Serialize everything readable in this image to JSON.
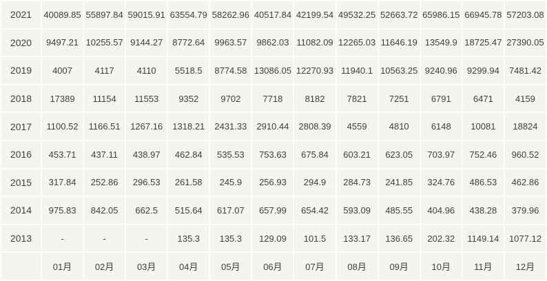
{
  "chart_data": {
    "type": "table",
    "columns": [
      "01月",
      "02月",
      "03月",
      "04月",
      "05月",
      "06月",
      "07月",
      "08月",
      "09月",
      "10月",
      "11月",
      "12月"
    ],
    "corner_label": "",
    "rows": [
      {
        "label": "2021",
        "values": [
          "40089.85",
          "55897.84",
          "59015.91",
          "63554.79",
          "58262.96",
          "40517.84",
          "42199.54",
          "49532.25",
          "52663.72",
          "65986.15",
          "66945.78",
          "57203.08"
        ]
      },
      {
        "label": "2020",
        "values": [
          "9497.21",
          "10255.57",
          "9144.27",
          "8772.64",
          "9963.57",
          "9862.03",
          "11082.09",
          "12265.03",
          "11646.19",
          "13549.9",
          "18725.47",
          "27390.05"
        ]
      },
      {
        "label": "2019",
        "values": [
          "4007",
          "4117",
          "4110",
          "5518.5",
          "8774.58",
          "13086.05",
          "12270.93",
          "11940.1",
          "10563.25",
          "9240.96",
          "9299.94",
          "7481.42"
        ]
      },
      {
        "label": "2018",
        "values": [
          "17389",
          "11154",
          "11553",
          "9352",
          "9702",
          "7718",
          "8182",
          "7821",
          "7251",
          "6791",
          "6471",
          "4159"
        ]
      },
      {
        "label": "2017",
        "values": [
          "1100.52",
          "1166.51",
          "1267.16",
          "1318.21",
          "2431.33",
          "2910.44",
          "2808.39",
          "4559",
          "4810",
          "6148",
          "10081",
          "18824"
        ]
      },
      {
        "label": "2016",
        "values": [
          "453.71",
          "437.11",
          "438.97",
          "462.84",
          "535.53",
          "753.63",
          "675.84",
          "603.21",
          "623.05",
          "703.97",
          "752.46",
          "960.52"
        ]
      },
      {
        "label": "2015",
        "values": [
          "317.84",
          "252.86",
          "296.53",
          "261.58",
          "245.9",
          "256.93",
          "294.9",
          "284.73",
          "241.85",
          "324.76",
          "486.53",
          "462.86"
        ]
      },
      {
        "label": "2014",
        "values": [
          "975.83",
          "842.05",
          "662.5",
          "515.64",
          "617.07",
          "657.99",
          "654.42",
          "593.09",
          "485.55",
          "404.96",
          "438.28",
          "379.96"
        ]
      },
      {
        "label": "2013",
        "values": [
          "-",
          "-",
          "-",
          "135.3",
          "135.3",
          "129.09",
          "101.5",
          "133.17",
          "136.65",
          "202.32",
          "1149.14",
          "1077.12"
        ]
      }
    ],
    "layout": {
      "cell_background": "#f5f5f0",
      "grid_line_color": "#fdfdfd",
      "text_color": "#3e3e3e",
      "legend_position": "none",
      "grid": true
    }
  }
}
